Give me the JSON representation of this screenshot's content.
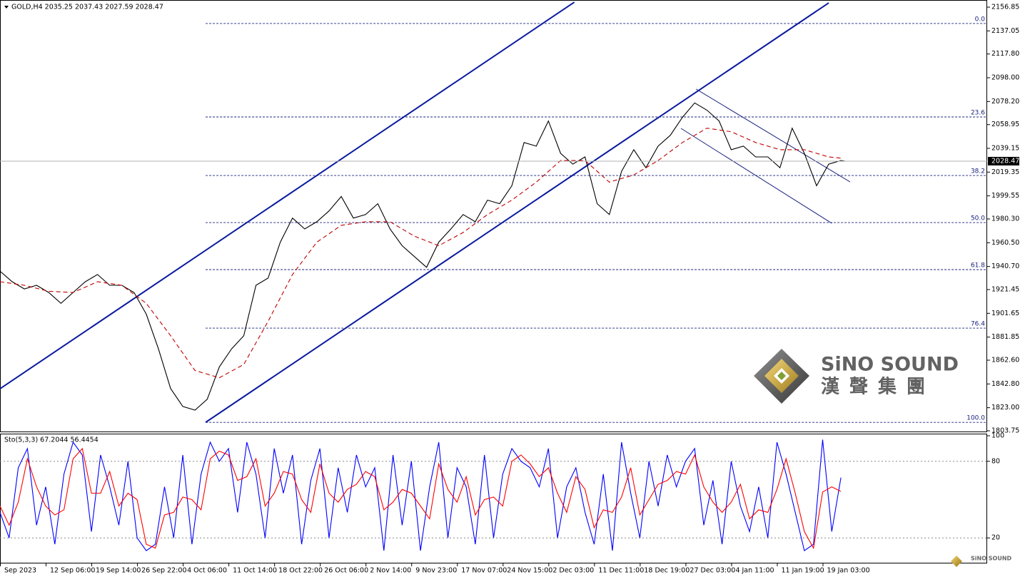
{
  "chart_data": [
    {
      "type": "line",
      "title": "GOLD,H4  2035.25 2037.43 2027.59 2028.47",
      "xlim": [
        0,
        648
      ],
      "ylim": [
        1803.75,
        2156.85
      ],
      "yticks": [
        2156.85,
        2137.05,
        {
          "value": 2117.8,
          "label": "2117.80"
        },
        {
          "value": 2098,
          "label": "2098.00"
        },
        {
          "value": 2078.2,
          "label": "2078.20"
        },
        2058.95,
        2039.15,
        2019.35,
        1999.55,
        {
          "value": 1980.3,
          "label": "1980.30"
        },
        {
          "value": 1960.5,
          "label": "1960.50"
        },
        {
          "value": 1940.7,
          "label": "1940.70"
        },
        1921.45,
        1901.65,
        1881.85,
        {
          "value": 1862.6,
          "label": "1862.60"
        },
        {
          "value": 1842.8,
          "label": "1842.80"
        },
        {
          "value": 1823,
          "label": "1823.00"
        },
        1803.75
      ],
      "series": [
        {
          "color": "#000000",
          "x": [
            0,
            8,
            16,
            24,
            32,
            40,
            48,
            56,
            64,
            72,
            80,
            88,
            96,
            104,
            112,
            120,
            128,
            136,
            144,
            152,
            160,
            168,
            176,
            184,
            192,
            200,
            208,
            216,
            224,
            232,
            240,
            248,
            256,
            264,
            272,
            280,
            288,
            296,
            304,
            312,
            320,
            328,
            336,
            344,
            352,
            360,
            368,
            376,
            384,
            392,
            400,
            408,
            416,
            424,
            432,
            440,
            448,
            456,
            464,
            472,
            480,
            488,
            496,
            504,
            512,
            520,
            528,
            536,
            544,
            552,
            555
          ],
          "values": [
            1936.8,
            1928,
            1922,
            1925,
            1919,
            1910,
            1919,
            1928,
            1934,
            1925,
            1925,
            1919,
            1901,
            1872,
            1839,
            1824,
            1821,
            1830,
            1857,
            1872,
            1883,
            1925,
            1931,
            1961,
            1981,
            1972,
            1978,
            1987,
            1999,
            1981,
            1984,
            1993,
            1972,
            1958,
            1949,
            1940,
            1961,
            1972,
            1984,
            1978,
            1996,
            1993,
            2008,
            2044,
            2041,
            2062,
            2035,
            2026,
            2032,
            1993,
            1984,
            2020,
            2038,
            2023,
            2041,
            2050,
            2065,
            2077,
            2071,
            2062,
            2038,
            2041,
            2032,
            2032,
            2023,
            2056,
            2035,
            2008,
            2026,
            2029,
            2028.47
          ]
        },
        {
          "color": "#c00000",
          "dashed": true,
          "x": [
            0,
            16,
            32,
            48,
            64,
            80,
            96,
            112,
            128,
            144,
            160,
            176,
            192,
            208,
            224,
            240,
            256,
            272,
            288,
            304,
            320,
            336,
            352,
            368,
            384,
            400,
            416,
            432,
            448,
            464,
            480,
            496,
            512,
            528,
            544,
            552
          ],
          "values": [
            1928,
            1925,
            1920,
            1919,
            1928,
            1925,
            1910,
            1883,
            1854,
            1848,
            1859,
            1895,
            1934,
            1961,
            1975,
            1978,
            1978,
            1966,
            1958,
            1969,
            1984,
            1996,
            2011,
            2029,
            2029,
            2011,
            2017,
            2029,
            2044,
            2056,
            2053,
            2044,
            2038,
            2038,
            2032,
            2031
          ]
        }
      ],
      "trendlines": [
        {
          "color": "#0a1a9e",
          "width": 2,
          "points": [
            [
              0,
              1838.8
            ],
            [
              377,
              2161
            ]
          ]
        },
        {
          "color": "#0a1a9e",
          "width": 2,
          "points": [
            [
              135,
              1810.8
            ],
            [
              544,
              2160.4
            ]
          ]
        },
        {
          "color": "#1a237e",
          "width": 1,
          "points": [
            [
              457,
              2088.5
            ],
            [
              558,
              2011.2
            ]
          ]
        },
        {
          "color": "#1a237e",
          "width": 1,
          "points": [
            [
              447,
              2055.8
            ],
            [
              546,
              1976.7
            ]
          ]
        }
      ],
      "fib_start": 135,
      "levels": [
        {
          "label": "0.0",
          "price": 2143.2
        },
        {
          "label": "23.6",
          "price": 2065.3
        },
        {
          "label": "38.2",
          "price": 2016.5
        },
        {
          "label": "50.0",
          "price": 1977.3
        },
        {
          "label": "61.8",
          "price": 1938.1
        },
        {
          "label": "76.4",
          "price": 1889.3
        },
        {
          "label": "100.0",
          "price": 1810.8
        }
      ]
    },
    {
      "type": "line",
      "title": "Sto(5,3,3) 67.2044 56.4454",
      "xlim": [
        0,
        648
      ],
      "ylim": [
        0,
        100
      ],
      "yticks": [
        20,
        80,
        100
      ],
      "xticks": [
        {
          "value": 0,
          "label": "Sep 2023"
        },
        {
          "value": 30,
          "label": "12 Sep 06:00"
        },
        {
          "value": 60,
          "label": "19 Sep 14:00"
        },
        {
          "value": 90,
          "label": "26 Sep 22:00"
        },
        {
          "value": 120,
          "label": "4 Oct 06:00"
        },
        {
          "value": 150,
          "label": "11 Oct 14:00"
        },
        {
          "value": 180,
          "label": "18 Oct 22:00"
        },
        {
          "value": 210,
          "label": "26 Oct 06:00"
        },
        {
          "value": 240,
          "label": "2 Nov 14:00"
        },
        {
          "value": 270,
          "label": "9 Nov 23:00"
        },
        {
          "value": 300,
          "label": "17 Nov 07:00"
        },
        {
          "value": 330,
          "label": "24 Nov 15:00"
        },
        {
          "value": 360,
          "label": "2 Dec 03:00"
        },
        {
          "value": 390,
          "label": "11 Dec 11:00"
        },
        {
          "value": 420,
          "label": "18 Dec 19:00"
        },
        {
          "value": 450,
          "label": "27 Dec 03:00"
        },
        {
          "value": 480,
          "label": "4 Jan 11:00"
        },
        {
          "value": 510,
          "label": "11 Jan 19:00"
        },
        {
          "value": 540,
          "label": "19 Jan 03:00"
        }
      ],
      "series": [
        {
          "color": "#0000ff",
          "x": [
            0,
            6,
            12,
            18,
            24,
            30,
            36,
            42,
            48,
            54,
            60,
            66,
            72,
            78,
            84,
            90,
            96,
            102,
            108,
            114,
            120,
            126,
            132,
            138,
            144,
            150,
            156,
            162,
            168,
            174,
            180,
            186,
            192,
            198,
            204,
            210,
            216,
            222,
            228,
            234,
            240,
            246,
            252,
            258,
            264,
            270,
            276,
            282,
            288,
            294,
            300,
            306,
            312,
            318,
            324,
            330,
            336,
            342,
            348,
            354,
            360,
            366,
            372,
            378,
            384,
            390,
            396,
            402,
            408,
            414,
            420,
            426,
            432,
            438,
            444,
            450,
            456,
            462,
            468,
            474,
            480,
            486,
            492,
            498,
            504,
            510,
            516,
            522,
            528,
            534,
            540,
            546,
            552
          ],
          "values": [
            40,
            20,
            75,
            90,
            30,
            60,
            15,
            70,
            95,
            85,
            25,
            85,
            60,
            30,
            80,
            20,
            10,
            15,
            60,
            20,
            85,
            15,
            70,
            95,
            80,
            90,
            40,
            95,
            70,
            20,
            90,
            55,
            85,
            15,
            65,
            90,
            20,
            75,
            40,
            85,
            60,
            75,
            10,
            85,
            30,
            80,
            10,
            60,
            95,
            20,
            75,
            60,
            15,
            85,
            20,
            70,
            90,
            80,
            75,
            60,
            90,
            20,
            60,
            75,
            40,
            15,
            70,
            10,
            95,
            55,
            20,
            80,
            45,
            85,
            60,
            80,
            90,
            30,
            65,
            15,
            80,
            45,
            25,
            60,
            20,
            95,
            70,
            40,
            10,
            15,
            97,
            25,
            67.2044
          ]
        },
        {
          "color": "#ff0000",
          "x": [
            0,
            6,
            12,
            18,
            24,
            30,
            36,
            42,
            48,
            54,
            60,
            66,
            72,
            78,
            84,
            90,
            96,
            102,
            108,
            114,
            120,
            126,
            132,
            138,
            144,
            150,
            156,
            162,
            168,
            174,
            180,
            186,
            192,
            198,
            204,
            210,
            216,
            222,
            228,
            234,
            240,
            246,
            252,
            258,
            264,
            270,
            276,
            282,
            288,
            294,
            300,
            306,
            312,
            318,
            324,
            330,
            336,
            342,
            348,
            354,
            360,
            366,
            372,
            378,
            384,
            390,
            396,
            402,
            408,
            414,
            420,
            426,
            432,
            438,
            444,
            450,
            456,
            462,
            468,
            474,
            480,
            486,
            492,
            498,
            504,
            510,
            516,
            522,
            528,
            534,
            540,
            546,
            552
          ],
          "values": [
            45,
            30,
            48,
            82,
            60,
            45,
            38,
            42,
            82,
            90,
            55,
            55,
            72,
            45,
            55,
            50,
            15,
            12,
            38,
            40,
            52,
            50,
            42,
            82,
            88,
            85,
            65,
            68,
            82,
            45,
            55,
            72,
            70,
            50,
            40,
            78,
            55,
            48,
            58,
            62,
            72,
            68,
            42,
            48,
            58,
            55,
            45,
            35,
            78,
            58,
            48,
            68,
            38,
            50,
            52,
            45,
            80,
            85,
            78,
            68,
            75,
            55,
            40,
            68,
            58,
            28,
            42,
            40,
            52,
            75,
            38,
            50,
            62,
            65,
            72,
            70,
            85,
            60,
            48,
            40,
            48,
            62,
            35,
            42,
            40,
            58,
            82,
            55,
            25,
            12,
            56,
            60,
            56.4454
          ]
        }
      ]
    }
  ],
  "watermark": {
    "name": "SiNO SOUND",
    "chinese": "漢聲集團"
  }
}
